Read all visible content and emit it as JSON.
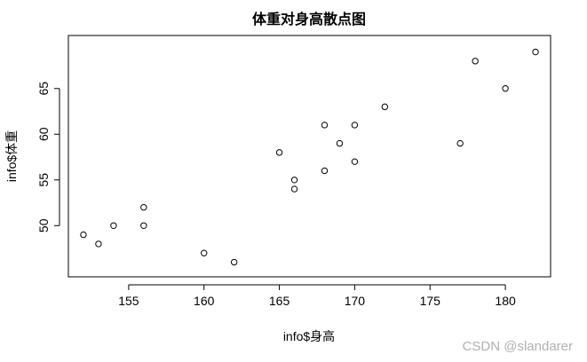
{
  "chart_data": {
    "type": "scatter",
    "title": "体重对身高散点图",
    "xlabel": "info$身高",
    "ylabel": "info$体重",
    "x_ticks": [
      155,
      160,
      165,
      170,
      175,
      180
    ],
    "y_ticks": [
      50,
      55,
      60,
      65
    ],
    "xlim": [
      151.0,
      183.0
    ],
    "ylim": [
      44.4,
      70.8
    ],
    "grid": false,
    "legend": "none",
    "marker": "open-circle",
    "points": [
      {
        "x": 152,
        "y": 49
      },
      {
        "x": 153,
        "y": 48
      },
      {
        "x": 154,
        "y": 50
      },
      {
        "x": 156,
        "y": 52
      },
      {
        "x": 156,
        "y": 50
      },
      {
        "x": 160,
        "y": 47
      },
      {
        "x": 162,
        "y": 46
      },
      {
        "x": 165,
        "y": 58
      },
      {
        "x": 166,
        "y": 55
      },
      {
        "x": 166,
        "y": 54
      },
      {
        "x": 168,
        "y": 61
      },
      {
        "x": 168,
        "y": 56
      },
      {
        "x": 169,
        "y": 59
      },
      {
        "x": 170,
        "y": 61
      },
      {
        "x": 170,
        "y": 57
      },
      {
        "x": 172,
        "y": 63
      },
      {
        "x": 177,
        "y": 59
      },
      {
        "x": 178,
        "y": 68
      },
      {
        "x": 180,
        "y": 65
      },
      {
        "x": 182,
        "y": 69
      }
    ]
  },
  "watermark": "CSDN @slandarer"
}
